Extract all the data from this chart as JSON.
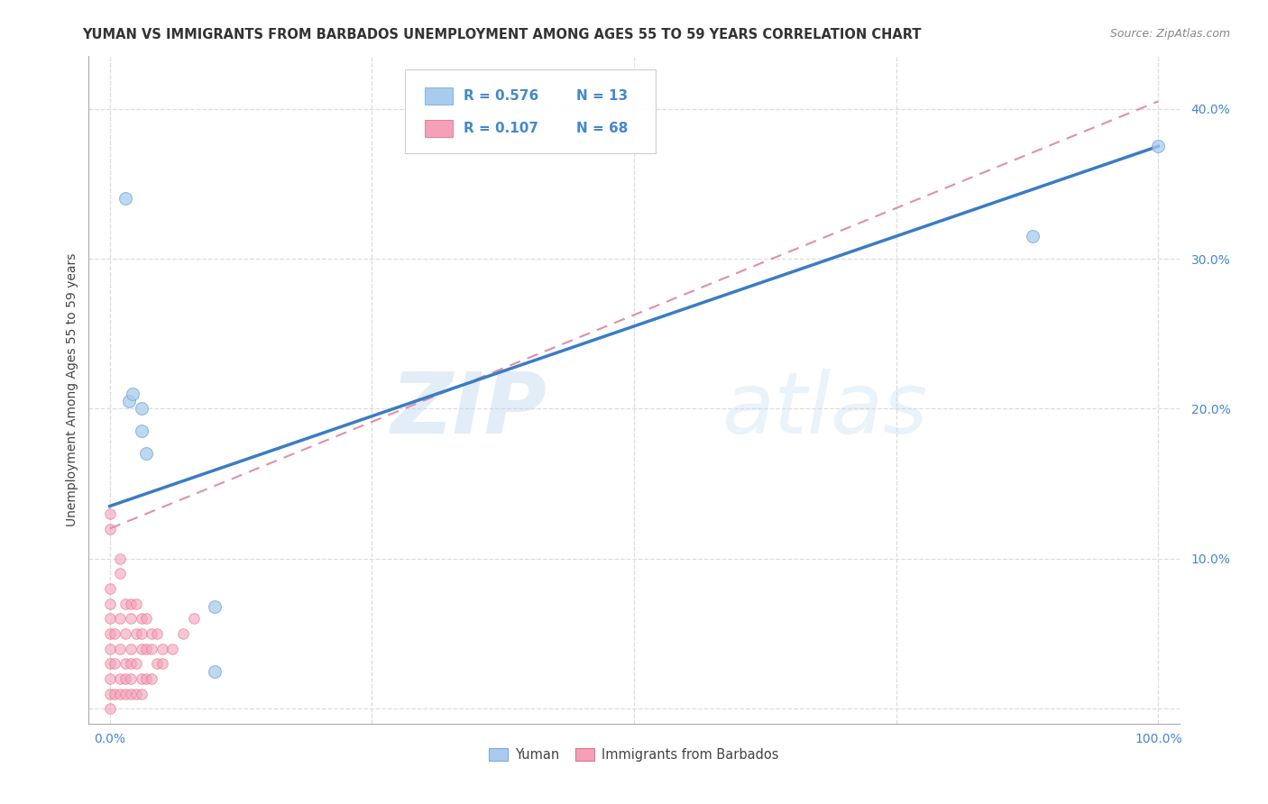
{
  "title": "YUMAN VS IMMIGRANTS FROM BARBADOS UNEMPLOYMENT AMONG AGES 55 TO 59 YEARS CORRELATION CHART",
  "source": "Source: ZipAtlas.com",
  "ylabel": "Unemployment Among Ages 55 to 59 years",
  "xlim": [
    -0.02,
    1.02
  ],
  "ylim": [
    -0.01,
    0.435
  ],
  "xticks": [
    0.0,
    0.25,
    0.5,
    0.75,
    1.0
  ],
  "xticklabels": [
    "0.0%",
    "",
    "",
    "",
    "100.0%"
  ],
  "yticks": [
    0.0,
    0.1,
    0.2,
    0.3,
    0.4
  ],
  "yticklabels": [
    "",
    "10.0%",
    "20.0%",
    "30.0%",
    "40.0%"
  ],
  "series1_name": "Yuman",
  "series1_color": "#A8CCEE",
  "series1_edge": "#7AAAD4",
  "series1_R": 0.576,
  "series1_N": 13,
  "series2_name": "Immigrants from Barbados",
  "series2_color": "#F4A0B8",
  "series2_edge": "#E07090",
  "series2_R": 0.107,
  "series2_N": 68,
  "watermark_zip": "ZIP",
  "watermark_atlas": "atlas",
  "background_color": "#FFFFFF",
  "grid_color": "#DDDDDD",
  "tick_color": "#4488CC",
  "line1_color": "#3A7CC3",
  "line2_color": "#E090A8",
  "yuman_x": [
    0.015,
    0.018,
    0.022,
    0.03,
    0.03,
    0.035,
    0.1,
    0.1,
    0.88,
    1.0
  ],
  "yuman_y": [
    0.34,
    0.205,
    0.21,
    0.185,
    0.2,
    0.17,
    0.068,
    0.025,
    0.315,
    0.375
  ],
  "barbados_x": [
    0.0,
    0.0,
    0.0,
    0.0,
    0.0,
    0.0,
    0.0,
    0.0,
    0.0,
    0.0,
    0.0,
    0.005,
    0.005,
    0.005,
    0.01,
    0.01,
    0.01,
    0.01,
    0.01,
    0.01,
    0.015,
    0.015,
    0.015,
    0.015,
    0.015,
    0.02,
    0.02,
    0.02,
    0.02,
    0.02,
    0.02,
    0.025,
    0.025,
    0.025,
    0.025,
    0.03,
    0.03,
    0.03,
    0.03,
    0.03,
    0.035,
    0.035,
    0.035,
    0.04,
    0.04,
    0.04,
    0.045,
    0.045,
    0.05,
    0.05,
    0.06,
    0.07,
    0.08
  ],
  "barbados_y": [
    0.0,
    0.01,
    0.02,
    0.03,
    0.04,
    0.05,
    0.06,
    0.07,
    0.08,
    0.12,
    0.13,
    0.01,
    0.03,
    0.05,
    0.01,
    0.02,
    0.04,
    0.06,
    0.09,
    0.1,
    0.01,
    0.02,
    0.03,
    0.05,
    0.07,
    0.01,
    0.02,
    0.03,
    0.04,
    0.06,
    0.07,
    0.01,
    0.03,
    0.05,
    0.07,
    0.01,
    0.02,
    0.04,
    0.05,
    0.06,
    0.02,
    0.04,
    0.06,
    0.02,
    0.04,
    0.05,
    0.03,
    0.05,
    0.03,
    0.04,
    0.04,
    0.05,
    0.06
  ],
  "line1_x0": 0.0,
  "line1_y0": 0.135,
  "line1_x1": 1.0,
  "line1_y1": 0.375,
  "line2_x0": 0.0,
  "line2_y0": 0.12,
  "line2_x1": 1.0,
  "line2_y1": 0.405,
  "title_fontsize": 10.5,
  "source_fontsize": 9,
  "ylabel_fontsize": 10,
  "tick_fontsize": 10,
  "legend_fontsize": 11,
  "marker_size_yuman": 100,
  "marker_size_barbados": 70
}
